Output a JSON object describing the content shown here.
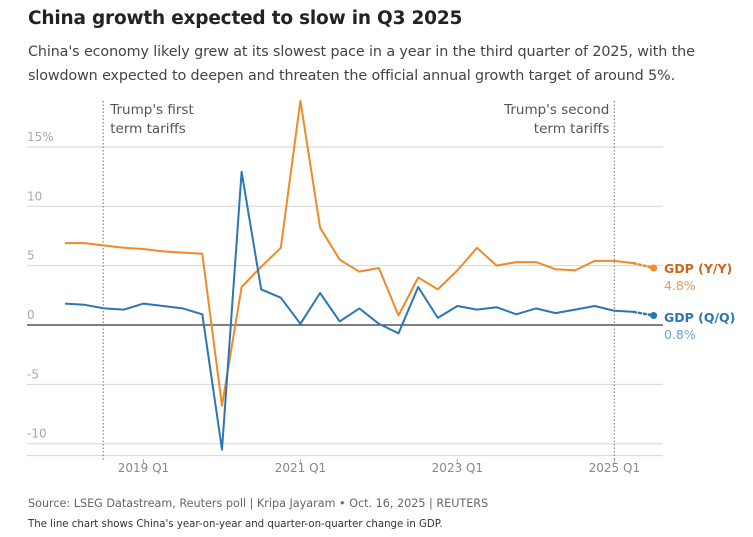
{
  "header": {
    "title": "China growth expected to slow in Q3 2025",
    "subtitle": "China's economy likely grew at its slowest pace in a year in the third quarter of 2025, with the slowdown expected to deepen and threaten the official annual growth target of around 5%."
  },
  "footer": {
    "source": "Source: LSEG Datastream, Reuters poll | Kripa Jayaram • Oct. 16, 2025 | REUTERS",
    "note": "The line chart shows China's year-on-year and quarter-on-quarter change in GDP."
  },
  "chart_data": {
    "type": "line",
    "title": "China growth expected to slow in Q3 2025",
    "xlabel": "",
    "ylabel": "%",
    "ylim": [
      -11,
      19
    ],
    "yticks": [
      15,
      10,
      5,
      0,
      -5,
      -10
    ],
    "ytick_labels": [
      "15%",
      "10",
      "5",
      "0",
      "-5",
      "-10"
    ],
    "x": [
      "2018 Q1",
      "2018 Q2",
      "2018 Q3",
      "2018 Q4",
      "2019 Q1",
      "2019 Q2",
      "2019 Q3",
      "2019 Q4",
      "2020 Q1",
      "2020 Q2",
      "2020 Q3",
      "2020 Q4",
      "2021 Q1",
      "2021 Q2",
      "2021 Q3",
      "2021 Q4",
      "2022 Q1",
      "2022 Q2",
      "2022 Q3",
      "2022 Q4",
      "2023 Q1",
      "2023 Q2",
      "2023 Q3",
      "2023 Q4",
      "2024 Q1",
      "2024 Q2",
      "2024 Q3",
      "2024 Q4",
      "2025 Q1",
      "2025 Q2",
      "2025 Q3"
    ],
    "xtick_labels": [
      {
        "index": 4,
        "label": "2019 Q1"
      },
      {
        "index": 12,
        "label": "2021 Q1"
      },
      {
        "index": 20,
        "label": "2023 Q1"
      },
      {
        "index": 28,
        "label": "2025 Q1"
      }
    ],
    "grid": true,
    "series": [
      {
        "name": "GDP (Y/Y)",
        "color": "#f0892a",
        "label_color": "#c8671a",
        "last_value_label": "4.8%",
        "forecast_last_point": true,
        "values": [
          6.9,
          6.9,
          6.7,
          6.5,
          6.4,
          6.2,
          6.1,
          6.0,
          -6.8,
          3.2,
          4.9,
          6.5,
          18.9,
          8.2,
          5.5,
          4.5,
          4.8,
          0.8,
          4.0,
          3.0,
          4.6,
          6.5,
          5.0,
          5.3,
          5.3,
          4.7,
          4.6,
          5.4,
          5.4,
          5.2,
          4.8
        ]
      },
      {
        "name": "GDP (Q/Q)",
        "color": "#2b76b3",
        "label_color": "#2b76b3",
        "last_value_label": "0.8%",
        "forecast_last_point": true,
        "values": [
          1.8,
          1.7,
          1.4,
          1.3,
          1.8,
          1.6,
          1.4,
          0.9,
          -10.5,
          12.9,
          3.0,
          2.3,
          0.1,
          2.7,
          0.3,
          1.4,
          0.1,
          -0.7,
          3.2,
          0.6,
          1.6,
          1.3,
          1.5,
          0.9,
          1.4,
          1.0,
          1.3,
          1.6,
          1.2,
          1.1,
          0.8
        ]
      }
    ],
    "annotations": [
      {
        "x_index": 2,
        "lines": [
          "Trump's first",
          "term tariffs"
        ],
        "align": "right-of-line"
      },
      {
        "x_index": 28,
        "lines": [
          "Trump's second",
          "term tariffs"
        ],
        "align": "left-of-line"
      }
    ]
  }
}
